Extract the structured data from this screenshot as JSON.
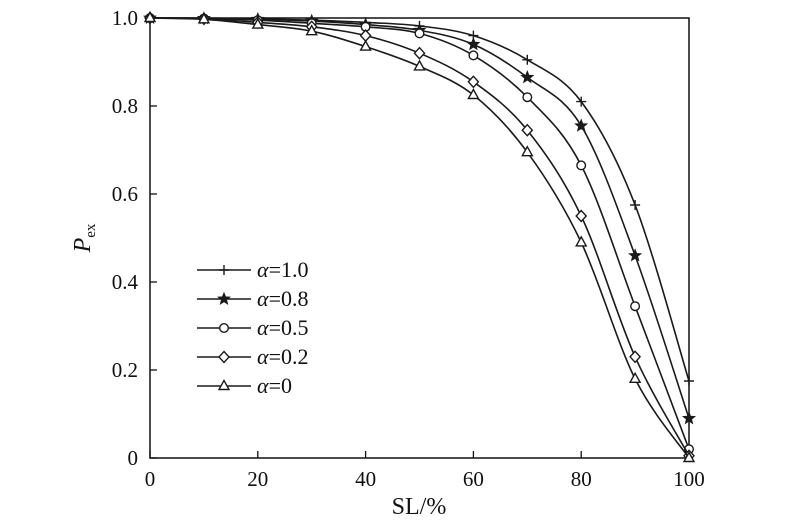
{
  "chart_data": {
    "type": "line",
    "xlabel": "SL/%",
    "ylabel_main": "P",
    "ylabel_sub": "ex",
    "xlim": [
      0,
      100
    ],
    "ylim": [
      0,
      1.0
    ],
    "xticks": [
      0,
      20,
      40,
      60,
      80,
      100
    ],
    "yticks": [
      0,
      0.2,
      0.4,
      0.6,
      0.8,
      1.0
    ],
    "xtick_labels": [
      "0",
      "20",
      "40",
      "60",
      "80",
      "100"
    ],
    "ytick_labels": [
      "0",
      "0.2",
      "0.4",
      "0.6",
      "0.8",
      "1.0"
    ],
    "grid": false,
    "legend_position": "lower-left",
    "series": [
      {
        "name": "α=1.0",
        "greek": "α",
        "value_label": "=1.0",
        "marker": "plus",
        "x": [
          0,
          10,
          20,
          30,
          40,
          50,
          60,
          70,
          80,
          90,
          100
        ],
        "y": [
          1.0,
          1.0,
          0.998,
          0.995,
          0.99,
          0.982,
          0.96,
          0.905,
          0.81,
          0.575,
          0.175
        ]
      },
      {
        "name": "α=0.8",
        "greek": "α",
        "value_label": "=0.8",
        "marker": "star",
        "x": [
          0,
          10,
          20,
          30,
          40,
          50,
          60,
          70,
          80,
          90,
          100
        ],
        "y": [
          1.0,
          0.999,
          0.997,
          0.993,
          0.985,
          0.972,
          0.94,
          0.865,
          0.755,
          0.46,
          0.09
        ]
      },
      {
        "name": "α=0.5",
        "greek": "α",
        "value_label": "=0.5",
        "marker": "circle",
        "x": [
          0,
          10,
          20,
          30,
          40,
          50,
          60,
          70,
          80,
          90,
          100
        ],
        "y": [
          1.0,
          0.999,
          0.995,
          0.988,
          0.98,
          0.965,
          0.915,
          0.82,
          0.665,
          0.345,
          0.02
        ]
      },
      {
        "name": "α=0.2",
        "greek": "α",
        "value_label": "=0.2",
        "marker": "diamond",
        "x": [
          0,
          10,
          20,
          30,
          40,
          50,
          60,
          70,
          80,
          90,
          100
        ],
        "y": [
          1.0,
          0.998,
          0.99,
          0.98,
          0.96,
          0.92,
          0.855,
          0.745,
          0.55,
          0.23,
          0.005
        ]
      },
      {
        "name": "α=0",
        "greek": "α",
        "value_label": "=0",
        "marker": "triangle",
        "x": [
          0,
          10,
          20,
          30,
          40,
          50,
          60,
          70,
          80,
          90,
          100
        ],
        "y": [
          1.0,
          0.997,
          0.985,
          0.97,
          0.935,
          0.89,
          0.825,
          0.695,
          0.49,
          0.18,
          0.0
        ]
      }
    ]
  }
}
